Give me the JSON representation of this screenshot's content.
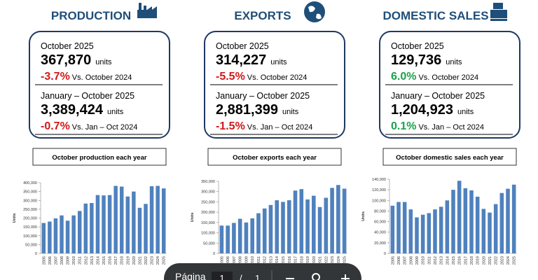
{
  "panels": [
    {
      "title": "PRODUCTION",
      "period1": "October 2025",
      "value1": "367,870",
      "unit": "units",
      "change1": "-3.7%",
      "compare1": "Vs. October 2024",
      "period2": "January – October 2025",
      "value2": "3,389,424",
      "change2": "-0.7%",
      "compare2": "Vs. Jan – Oct 2024",
      "caption": "October production each year"
    },
    {
      "title": "EXPORTS",
      "period1": "October 2025",
      "value1": "314,227",
      "unit": "units",
      "change1": "-5.5%",
      "compare1": "Vs. October 2024",
      "period2": "January – October 2025",
      "value2": "2,881,399",
      "change2": "-1.5%",
      "compare2": "Vs. Jan – Oct 2024",
      "caption": "October exports each year"
    },
    {
      "title": "DOMESTIC SALES",
      "period1": "October 2025",
      "value1": "129,736",
      "unit": "units",
      "change1": "6.0%",
      "compare1": "Vs. October 2024",
      "period2": "January – October 2025",
      "value2": "1,204,923",
      "change2": "0.1%",
      "compare2": "Vs. Jan – Oct 2024",
      "caption": "October domestic sales each year"
    }
  ],
  "chart_data": [
    {
      "type": "bar",
      "ylabel": "Units",
      "color": "#4f81bd",
      "categories": [
        "2005",
        "2006",
        "2007",
        "2008",
        "2009",
        "2010",
        "2011",
        "2012",
        "2013",
        "2014",
        "2015",
        "2016",
        "2017",
        "2018",
        "2019",
        "2020",
        "2021",
        "2022",
        "2023",
        "2024",
        "2025"
      ],
      "values": [
        172000,
        180000,
        198000,
        215000,
        185000,
        215000,
        240000,
        282000,
        285000,
        330000,
        328000,
        330000,
        382000,
        378000,
        322000,
        350000,
        258000,
        280000,
        380000,
        382000,
        367870
      ],
      "ylim": [
        0,
        400000
      ],
      "yticks": [
        0,
        {
          "value": 50000,
          "label": "50,000"
        },
        {
          "value": 100000,
          "label": "100,000"
        },
        {
          "value": 150000,
          "label": "150,000"
        },
        {
          "value": 200000,
          "label": "200,000"
        },
        {
          "value": 250000,
          "label": "250,000"
        },
        {
          "value": 300000,
          "label": "300,000"
        },
        {
          "value": 350000,
          "label": "350,000"
        },
        {
          "value": 400000,
          "label": "400,000"
        }
      ]
    },
    {
      "type": "bar",
      "ylabel": "Units",
      "color": "#4f81bd",
      "categories": [
        "2005",
        "2006",
        "2007",
        "2008",
        "2009",
        "2010",
        "2011",
        "2012",
        "2013",
        "2014",
        "2015",
        "2016",
        "2017",
        "2018",
        "2019",
        "2020",
        "2021",
        "2022",
        "2023",
        "2024",
        "2025"
      ],
      "values": [
        135000,
        135000,
        148000,
        168000,
        150000,
        170000,
        195000,
        218000,
        235000,
        258000,
        250000,
        258000,
        305000,
        312000,
        262000,
        280000,
        225000,
        270000,
        318000,
        332000,
        314227
      ],
      "ylim": [
        0,
        350000
      ],
      "yticks": [
        0,
        {
          "value": 50000,
          "label": "50,000"
        },
        {
          "value": 100000,
          "label": "100,000"
        },
        {
          "value": 150000,
          "label": "150,000"
        },
        {
          "value": 200000,
          "label": "200,000"
        },
        {
          "value": 250000,
          "label": "250,000"
        },
        {
          "value": 300000,
          "label": "300,000"
        },
        {
          "value": 350000,
          "label": "350,000"
        }
      ]
    },
    {
      "type": "bar",
      "ylabel": "Units",
      "color": "#4f81bd",
      "categories": [
        "2005",
        "2006",
        "2007",
        "2008",
        "2009",
        "2010",
        "2011",
        "2012",
        "2013",
        "2014",
        "2015",
        "2016",
        "2017",
        "2018",
        "2019",
        "2020",
        "2021",
        "2022",
        "2023",
        "2024",
        "2025"
      ],
      "values": [
        90000,
        97000,
        97000,
        83000,
        68000,
        73000,
        76000,
        83000,
        88000,
        100000,
        120000,
        137000,
        123000,
        119000,
        107000,
        84000,
        77000,
        93000,
        114000,
        122000,
        129736
      ],
      "ylim": [
        0,
        140000
      ],
      "yticks": [
        0,
        {
          "value": 20000,
          "label": "20,000"
        },
        {
          "value": 40000,
          "label": "40,000"
        },
        {
          "value": 60000,
          "label": "60,000"
        },
        {
          "value": 80000,
          "label": "80,000"
        },
        {
          "value": 100000,
          "label": "100,000"
        },
        {
          "value": 120000,
          "label": "120,000"
        },
        {
          "value": 140000,
          "label": "140,000"
        }
      ]
    }
  ],
  "toolbar": {
    "label": "Página",
    "page": "1",
    "separator": "/",
    "total": "1"
  }
}
